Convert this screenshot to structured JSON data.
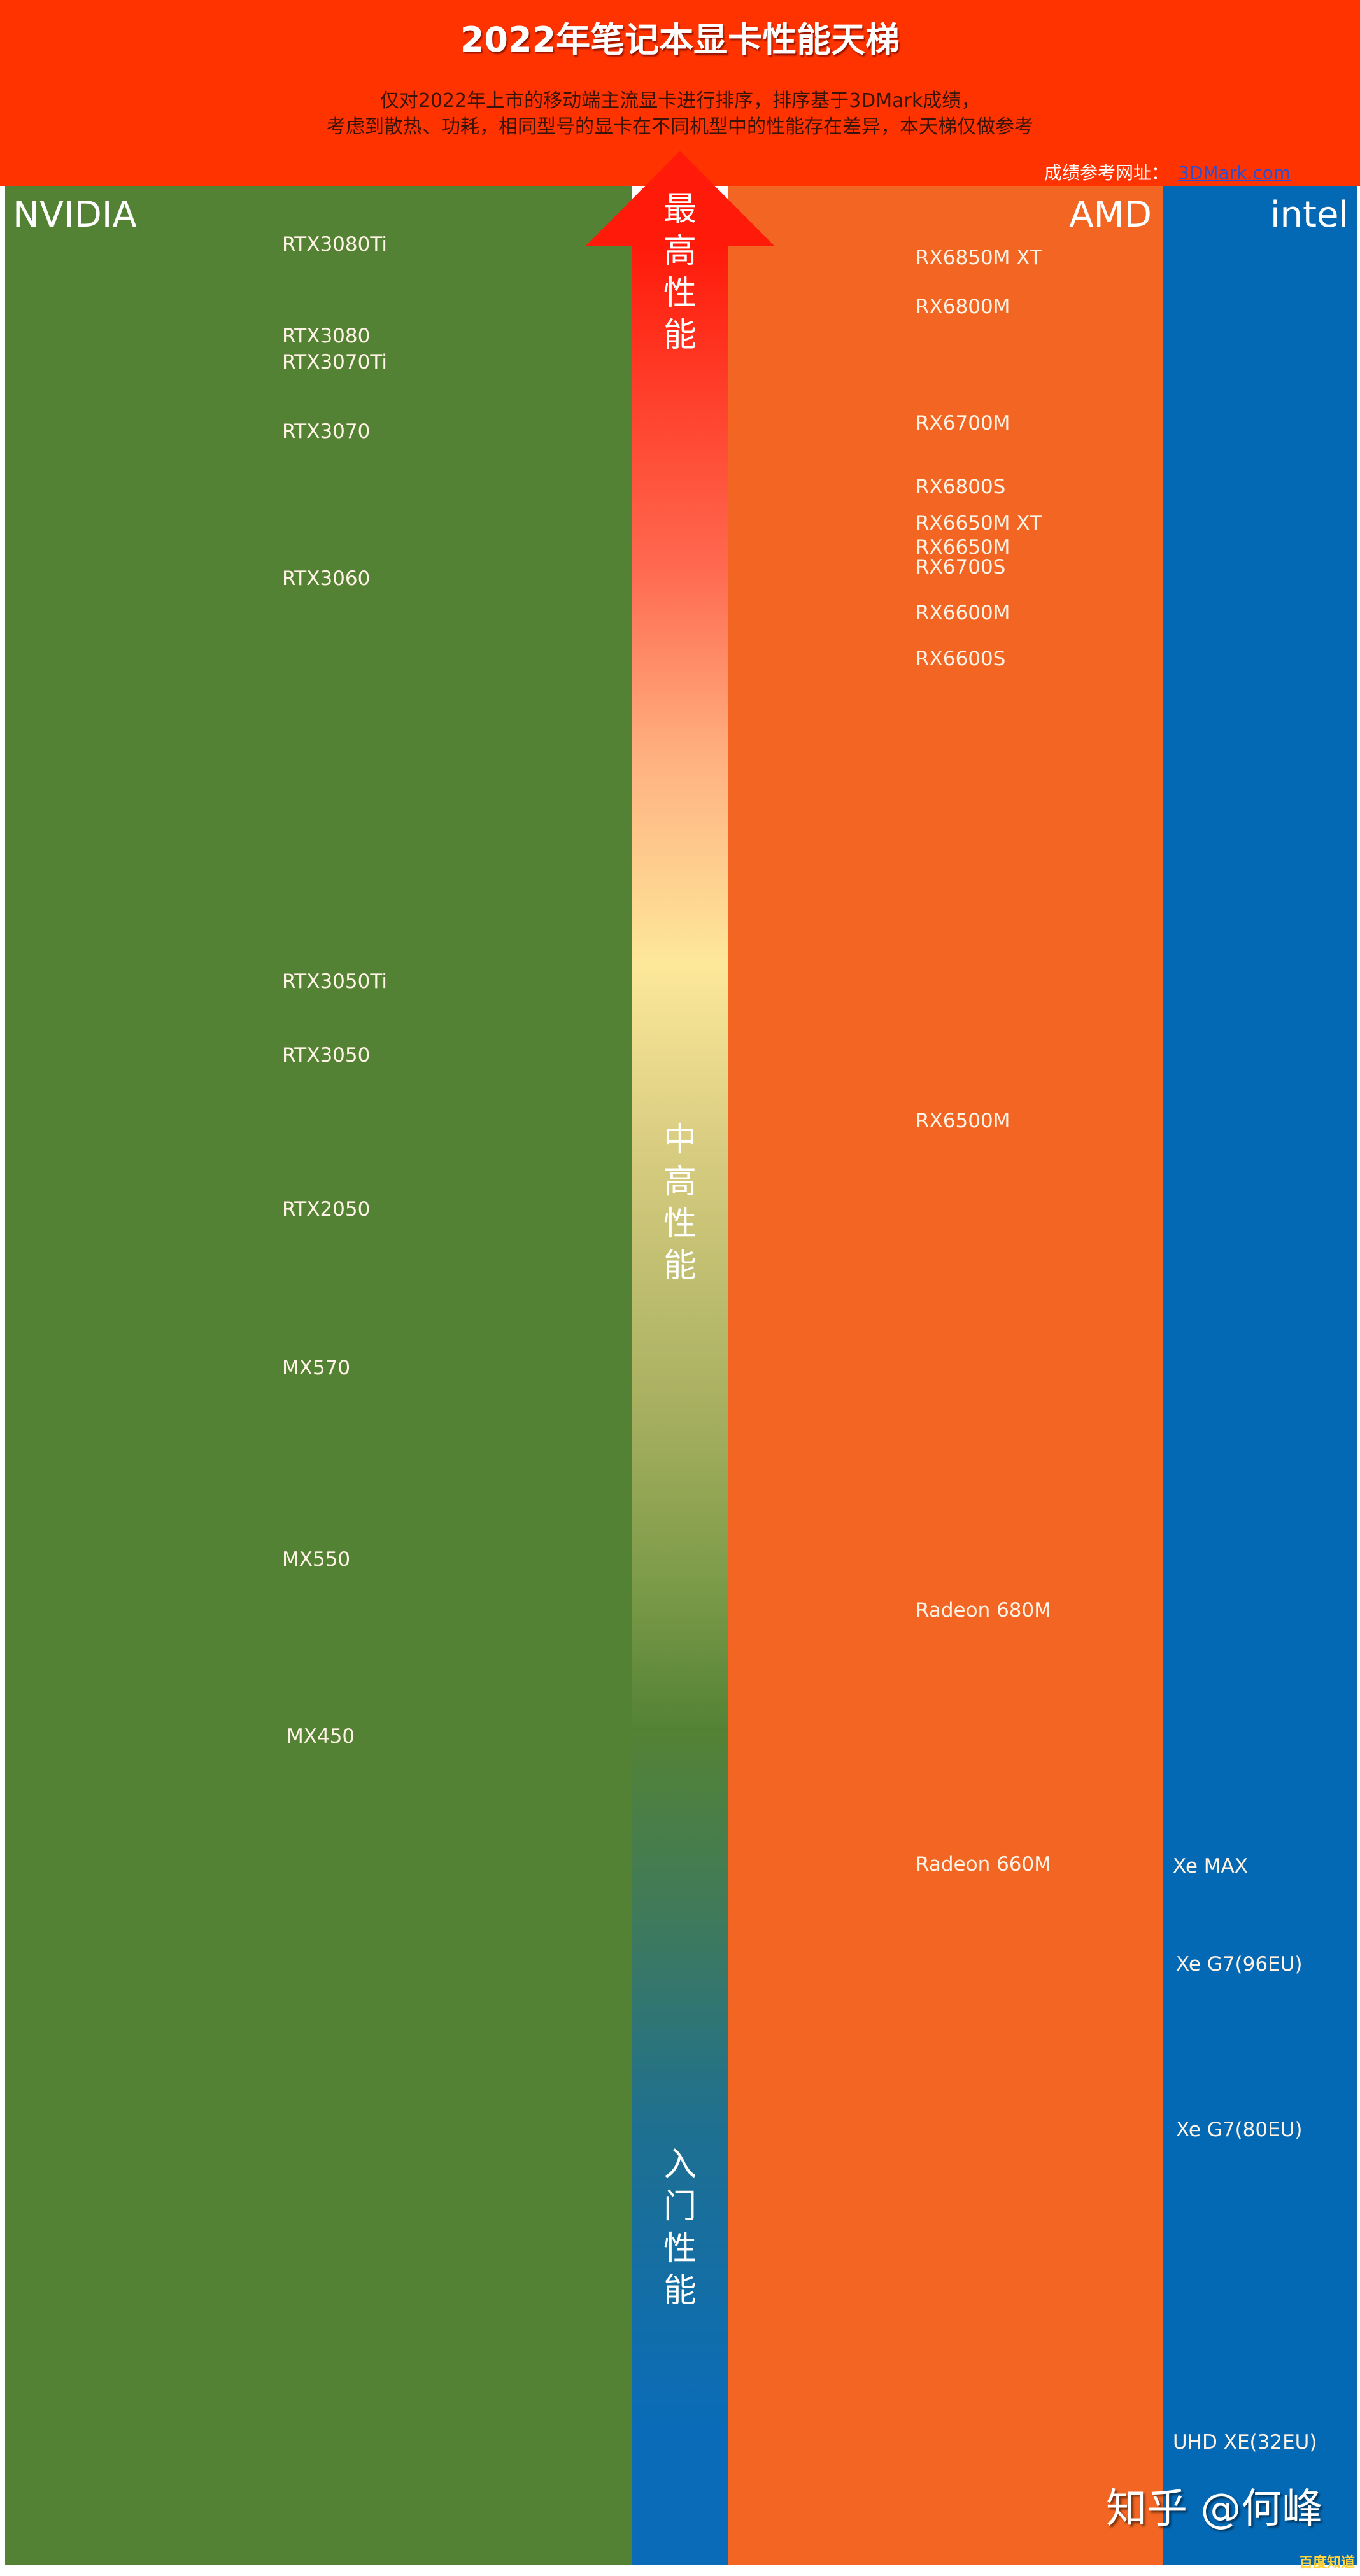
{
  "header": {
    "title": "2022年笔记本显卡性能天梯",
    "subtitle_line1": "仅对2022年上市的移动端主流显卡进行排序，排序基于3DMark成绩，",
    "subtitle_line2": "考虑到散热、功耗，相同型号的显卡在不同机型中的性能存在差异，本天梯仅做参考",
    "reference_label": "成绩参考网址：",
    "reference_link": "3DMark.com"
  },
  "colors": {
    "header": "#ff3300",
    "nvidia": "#548235",
    "amd": "#f26522",
    "intel": "#0469b4",
    "arrow_top": "#ff1a0a",
    "arrow_bottom": "#0a6cb8"
  },
  "arrow": {
    "top_label": "最高性能",
    "mid_label": "中高性能",
    "bottom_label": "入门性能"
  },
  "nvidia": {
    "brand": "NVIDIA",
    "items": [
      "RTX3080Ti",
      "RTX3080",
      "RTX3070Ti",
      "RTX3070",
      "RTX3060",
      "RTX3050Ti",
      "RTX3050",
      "RTX2050",
      "MX570",
      "MX550",
      "MX450"
    ]
  },
  "amd": {
    "brand": "AMD",
    "items": [
      "RX6850M XT",
      "RX6800M",
      "RX6700M",
      "RX6800S",
      "RX6650M XT",
      "RX6650M",
      "RX6700S",
      "RX6600M",
      "RX6600S",
      "RX6500M",
      "Radeon 680M",
      "Radeon 660M"
    ]
  },
  "intel": {
    "brand": "intel",
    "items": [
      "Xe MAX",
      "Xe G7(96EU)",
      "Xe G7(80EU)",
      "UHD XE(32EU)"
    ]
  },
  "watermark": "知乎 @何峰",
  "corner_logo": "百度知道"
}
